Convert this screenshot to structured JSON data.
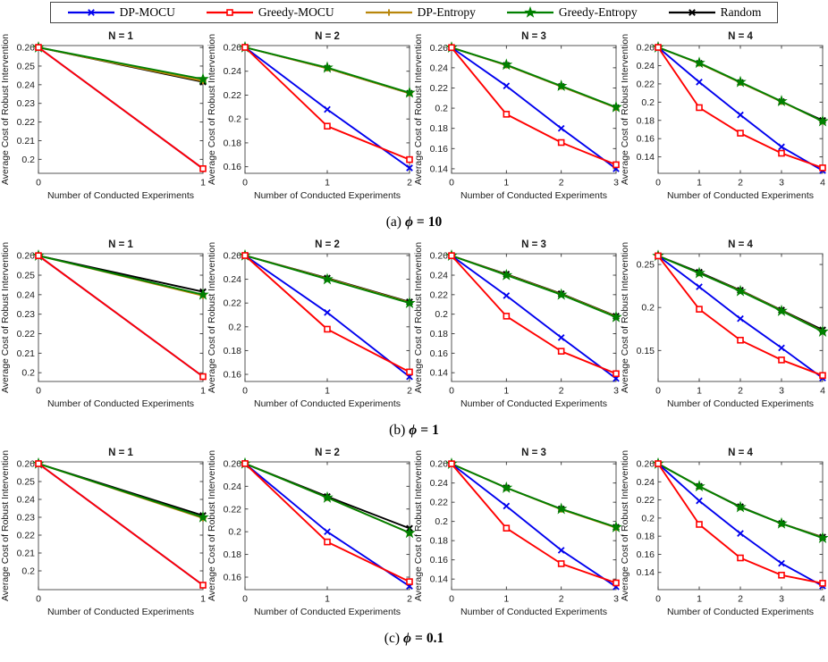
{
  "figure": {
    "legend": {
      "entries": [
        {
          "label": "DP-MOCU",
          "color": "#0000ee",
          "marker": "x"
        },
        {
          "label": "Greedy-MOCU",
          "color": "#ff0000",
          "marker": "square"
        },
        {
          "label": "DP-Entropy",
          "color": "#b8860b",
          "marker": "plus"
        },
        {
          "label": "Greedy-Entropy",
          "color": "#008000",
          "marker": "star"
        },
        {
          "label": "Random",
          "color": "#000000",
          "marker": "xbold"
        }
      ]
    },
    "captions": [
      {
        "prefix": "(a)",
        "symbol": "ϕ",
        "eq": "=",
        "value": "10"
      },
      {
        "prefix": "(b)",
        "symbol": "ϕ",
        "eq": "=",
        "value": "1"
      },
      {
        "prefix": "(c)",
        "symbol": "ϕ",
        "eq": "=",
        "value": "0.1"
      }
    ]
  },
  "chart_data": [
    {
      "type": "line",
      "panel": "a",
      "title": "N = 1",
      "xlabel": "Number of Conducted Experiments",
      "ylabel": "Average Cost of Robust Intervention",
      "x": [
        0,
        1
      ],
      "yticks": [
        0.2,
        0.21,
        0.22,
        0.23,
        0.24,
        0.25,
        0.26
      ],
      "ylim": [
        0.1925,
        0.261
      ],
      "series": [
        {
          "name": "DP-MOCU",
          "values": [
            0.26,
            0.195
          ]
        },
        {
          "name": "Greedy-MOCU",
          "values": [
            0.26,
            0.195
          ]
        },
        {
          "name": "DP-Entropy",
          "values": [
            0.26,
            0.242
          ]
        },
        {
          "name": "Greedy-Entropy",
          "values": [
            0.26,
            0.243
          ]
        },
        {
          "name": "Random",
          "values": [
            0.26,
            0.2415
          ]
        }
      ]
    },
    {
      "type": "line",
      "panel": "a",
      "title": "N = 2",
      "xlabel": "Number of Conducted Experiments",
      "ylabel": "Average Cost of Robust Intervention",
      "x": [
        0,
        1,
        2
      ],
      "yticks": [
        0.16,
        0.18,
        0.2,
        0.22,
        0.24,
        0.26
      ],
      "ylim": [
        0.1545,
        0.2615
      ],
      "series": [
        {
          "name": "DP-MOCU",
          "values": [
            0.26,
            0.208,
            0.159
          ]
        },
        {
          "name": "Greedy-MOCU",
          "values": [
            0.26,
            0.194,
            0.166
          ]
        },
        {
          "name": "DP-Entropy",
          "values": [
            0.26,
            0.2425,
            0.2215
          ]
        },
        {
          "name": "Greedy-Entropy",
          "values": [
            0.26,
            0.243,
            0.222
          ]
        },
        {
          "name": "Random",
          "values": [
            0.26,
            0.2425,
            0.2215
          ]
        }
      ]
    },
    {
      "type": "line",
      "panel": "a",
      "title": "N = 3",
      "xlabel": "Number of Conducted Experiments",
      "ylabel": "Average Cost of Robust Intervention",
      "x": [
        0,
        1,
        2,
        3
      ],
      "yticks": [
        0.14,
        0.16,
        0.18,
        0.2,
        0.22,
        0.24,
        0.26
      ],
      "ylim": [
        0.1355,
        0.262
      ],
      "series": [
        {
          "name": "DP-MOCU",
          "values": [
            0.26,
            0.222,
            0.18,
            0.14
          ]
        },
        {
          "name": "Greedy-MOCU",
          "values": [
            0.26,
            0.194,
            0.166,
            0.144
          ]
        },
        {
          "name": "DP-Entropy",
          "values": [
            0.26,
            0.2425,
            0.2215,
            0.2005
          ]
        },
        {
          "name": "Greedy-Entropy",
          "values": [
            0.26,
            0.243,
            0.222,
            0.201
          ]
        },
        {
          "name": "Random",
          "values": [
            0.26,
            0.2425,
            0.2215,
            0.2005
          ]
        }
      ]
    },
    {
      "type": "line",
      "panel": "a",
      "title": "N = 4",
      "xlabel": "Number of Conducted Experiments",
      "ylabel": "Average Cost of Robust Intervention",
      "x": [
        0,
        1,
        2,
        3,
        4
      ],
      "yticks": [
        0.14,
        0.16,
        0.18,
        0.2,
        0.22,
        0.24,
        0.26
      ],
      "ylim": [
        0.122,
        0.262
      ],
      "series": [
        {
          "name": "DP-MOCU",
          "values": [
            0.26,
            0.222,
            0.186,
            0.151,
            0.125
          ]
        },
        {
          "name": "Greedy-MOCU",
          "values": [
            0.26,
            0.194,
            0.166,
            0.144,
            0.128
          ]
        },
        {
          "name": "DP-Entropy",
          "values": [
            0.26,
            0.2425,
            0.2215,
            0.2005,
            0.179
          ]
        },
        {
          "name": "Greedy-Entropy",
          "values": [
            0.26,
            0.243,
            0.222,
            0.201,
            0.179
          ]
        },
        {
          "name": "Random",
          "values": [
            0.26,
            0.2425,
            0.2215,
            0.2005,
            0.18
          ]
        }
      ]
    },
    {
      "type": "line",
      "panel": "b",
      "title": "N = 1",
      "xlabel": "Number of Conducted Experiments",
      "ylabel": "Average Cost of Robust Intervention",
      "x": [
        0,
        1
      ],
      "yticks": [
        0.2,
        0.21,
        0.22,
        0.23,
        0.24,
        0.25,
        0.26
      ],
      "ylim": [
        0.1955,
        0.261
      ],
      "series": [
        {
          "name": "DP-MOCU",
          "values": [
            0.26,
            0.198
          ]
        },
        {
          "name": "Greedy-MOCU",
          "values": [
            0.26,
            0.198
          ]
        },
        {
          "name": "DP-Entropy",
          "values": [
            0.26,
            0.2395
          ]
        },
        {
          "name": "Greedy-Entropy",
          "values": [
            0.26,
            0.24
          ]
        },
        {
          "name": "Random",
          "values": [
            0.26,
            0.2415
          ]
        }
      ]
    },
    {
      "type": "line",
      "panel": "b",
      "title": "N = 2",
      "xlabel": "Number of Conducted Experiments",
      "ylabel": "Average Cost of Robust Intervention",
      "x": [
        0,
        1,
        2
      ],
      "yticks": [
        0.16,
        0.18,
        0.2,
        0.22,
        0.24,
        0.26
      ],
      "ylim": [
        0.154,
        0.2615
      ],
      "series": [
        {
          "name": "DP-MOCU",
          "values": [
            0.26,
            0.212,
            0.158
          ]
        },
        {
          "name": "Greedy-MOCU",
          "values": [
            0.26,
            0.198,
            0.162
          ]
        },
        {
          "name": "DP-Entropy",
          "values": [
            0.26,
            0.2405,
            0.2205
          ]
        },
        {
          "name": "Greedy-Entropy",
          "values": [
            0.26,
            0.24,
            0.22
          ]
        },
        {
          "name": "Random",
          "values": [
            0.26,
            0.241,
            0.221
          ]
        }
      ]
    },
    {
      "type": "line",
      "panel": "b",
      "title": "N = 3",
      "xlabel": "Number of Conducted Experiments",
      "ylabel": "Average Cost of Robust Intervention",
      "x": [
        0,
        1,
        2,
        3
      ],
      "yticks": [
        0.14,
        0.16,
        0.18,
        0.2,
        0.22,
        0.24,
        0.26
      ],
      "ylim": [
        0.131,
        0.262
      ],
      "series": [
        {
          "name": "DP-MOCU",
          "values": [
            0.26,
            0.219,
            0.176,
            0.134
          ]
        },
        {
          "name": "Greedy-MOCU",
          "values": [
            0.26,
            0.198,
            0.162,
            0.139
          ]
        },
        {
          "name": "DP-Entropy",
          "values": [
            0.26,
            0.2405,
            0.2205,
            0.1975
          ]
        },
        {
          "name": "Greedy-Entropy",
          "values": [
            0.26,
            0.24,
            0.22,
            0.197
          ]
        },
        {
          "name": "Random",
          "values": [
            0.26,
            0.241,
            0.221,
            0.198
          ]
        }
      ]
    },
    {
      "type": "line",
      "panel": "b",
      "title": "N = 4",
      "xlabel": "Number of Conducted Experiments",
      "ylabel": "Average Cost of Robust Intervention",
      "x": [
        0,
        1,
        2,
        3,
        4
      ],
      "yticks": [
        0.15,
        0.2,
        0.25
      ],
      "ylim": [
        0.114,
        0.2625
      ],
      "series": [
        {
          "name": "DP-MOCU",
          "values": [
            0.26,
            0.224,
            0.187,
            0.153,
            0.118
          ]
        },
        {
          "name": "Greedy-MOCU",
          "values": [
            0.26,
            0.198,
            0.162,
            0.139,
            0.121
          ]
        },
        {
          "name": "DP-Entropy",
          "values": [
            0.26,
            0.24,
            0.2195,
            0.1965,
            0.1725
          ]
        },
        {
          "name": "Greedy-Entropy",
          "values": [
            0.26,
            0.24,
            0.219,
            0.196,
            0.172
          ]
        },
        {
          "name": "Random",
          "values": [
            0.26,
            0.241,
            0.22,
            0.197,
            0.174
          ]
        }
      ]
    },
    {
      "type": "line",
      "panel": "c",
      "title": "N = 1",
      "xlabel": "Number of Conducted Experiments",
      "ylabel": "Average Cost of Robust Intervention",
      "x": [
        0,
        1
      ],
      "yticks": [
        0.2,
        0.21,
        0.22,
        0.23,
        0.24,
        0.25,
        0.26
      ],
      "ylim": [
        0.1895,
        0.261
      ],
      "series": [
        {
          "name": "DP-MOCU",
          "values": [
            0.26,
            0.192
          ]
        },
        {
          "name": "Greedy-MOCU",
          "values": [
            0.26,
            0.192
          ]
        },
        {
          "name": "DP-Entropy",
          "values": [
            0.26,
            0.2295
          ]
        },
        {
          "name": "Greedy-Entropy",
          "values": [
            0.26,
            0.23
          ]
        },
        {
          "name": "Random",
          "values": [
            0.26,
            0.231
          ]
        }
      ]
    },
    {
      "type": "line",
      "panel": "c",
      "title": "N = 2",
      "xlabel": "Number of Conducted Experiments",
      "ylabel": "Average Cost of Robust Intervention",
      "x": [
        0,
        1,
        2
      ],
      "yticks": [
        0.16,
        0.18,
        0.2,
        0.22,
        0.24,
        0.26
      ],
      "ylim": [
        0.149,
        0.2615
      ],
      "series": [
        {
          "name": "DP-MOCU",
          "values": [
            0.26,
            0.2,
            0.152
          ]
        },
        {
          "name": "Greedy-MOCU",
          "values": [
            0.26,
            0.191,
            0.156
          ]
        },
        {
          "name": "DP-Entropy",
          "values": [
            0.26,
            0.23,
            0.199
          ]
        },
        {
          "name": "Greedy-Entropy",
          "values": [
            0.26,
            0.23,
            0.199
          ]
        },
        {
          "name": "Random",
          "values": [
            0.26,
            0.231,
            0.203
          ]
        }
      ]
    },
    {
      "type": "line",
      "panel": "c",
      "title": "N = 3",
      "xlabel": "Number of Conducted Experiments",
      "ylabel": "Average Cost of Robust Intervention",
      "x": [
        0,
        1,
        2,
        3
      ],
      "yticks": [
        0.14,
        0.16,
        0.18,
        0.2,
        0.22,
        0.24,
        0.26
      ],
      "ylim": [
        0.129,
        0.262
      ],
      "series": [
        {
          "name": "DP-MOCU",
          "values": [
            0.26,
            0.216,
            0.17,
            0.132
          ]
        },
        {
          "name": "Greedy-MOCU",
          "values": [
            0.26,
            0.193,
            0.156,
            0.136
          ]
        },
        {
          "name": "DP-Entropy",
          "values": [
            0.26,
            0.235,
            0.2125,
            0.1935
          ]
        },
        {
          "name": "Greedy-Entropy",
          "values": [
            0.26,
            0.235,
            0.213,
            0.194
          ]
        },
        {
          "name": "Random",
          "values": [
            0.26,
            0.235,
            0.213,
            0.194
          ]
        }
      ]
    },
    {
      "type": "line",
      "panel": "c",
      "title": "N = 4",
      "xlabel": "Number of Conducted Experiments",
      "ylabel": "Average Cost of Robust Intervention",
      "x": [
        0,
        1,
        2,
        3,
        4
      ],
      "yticks": [
        0.14,
        0.16,
        0.18,
        0.2,
        0.22,
        0.24,
        0.26
      ],
      "ylim": [
        0.121,
        0.262
      ],
      "series": [
        {
          "name": "DP-MOCU",
          "values": [
            0.26,
            0.219,
            0.183,
            0.15,
            0.125
          ]
        },
        {
          "name": "Greedy-MOCU",
          "values": [
            0.26,
            0.193,
            0.156,
            0.137,
            0.128
          ]
        },
        {
          "name": "DP-Entropy",
          "values": [
            0.26,
            0.235,
            0.212,
            0.194,
            0.1785
          ]
        },
        {
          "name": "Greedy-Entropy",
          "values": [
            0.26,
            0.235,
            0.212,
            0.194,
            0.178
          ]
        },
        {
          "name": "Random",
          "values": [
            0.26,
            0.235,
            0.2125,
            0.194,
            0.179
          ]
        }
      ]
    }
  ]
}
